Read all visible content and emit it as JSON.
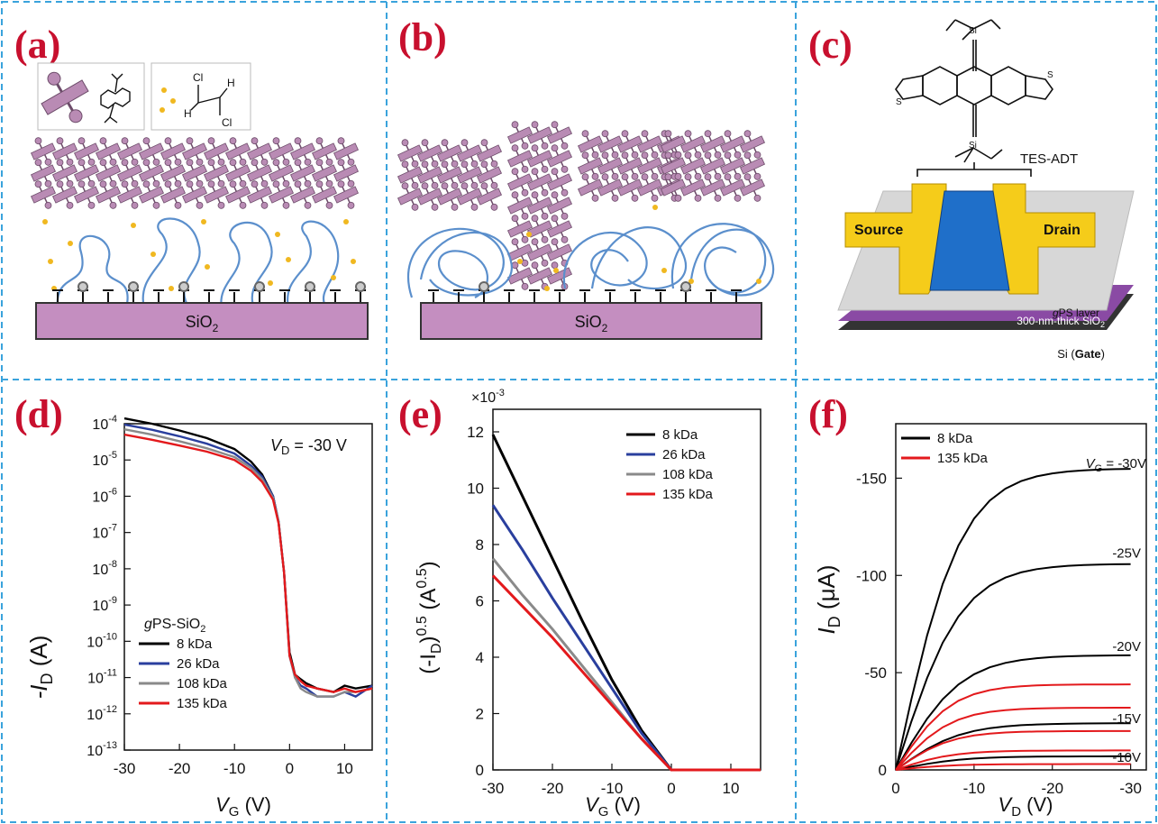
{
  "panel_labels": {
    "a": "(a)",
    "b": "(b)",
    "c": "(c)",
    "d": "(d)",
    "e": "(e)",
    "f": "(f)"
  },
  "diagram_a": {
    "substrate": "SiO",
    "subscript": "2"
  },
  "diagram_b": {
    "substrate": "SiO",
    "subscript": "2"
  },
  "diagram_c": {
    "molecule": "TES-ADT",
    "source": "Source",
    "drain": "Drain",
    "gps_italic": "g",
    "gps_rest": "PS layer",
    "sio2": "300-nm-thick SiO",
    "sio2_sub": "2",
    "gate_prefix": "Si (",
    "gate_bold": "Gate",
    "gate_suffix": ")",
    "atoms": {
      "si": "Si",
      "s": "S",
      "cl": "Cl",
      "h": "H"
    }
  },
  "colors": {
    "black": "#000000",
    "blue": "#2a3f9e",
    "gray": "#8a8a8a",
    "red": "#e3191c",
    "divider": "#3aa3dc",
    "pink": "#b98bb4",
    "gold": "#f0b820",
    "bluechain": "#5b8fcc",
    "yellow": "#f5cc1a",
    "channel": "#1f6fc9"
  },
  "chart_data": [
    {
      "type": "line",
      "panel": "d",
      "ylabel_main": "-I",
      "ylabel_sub": "D",
      "ylabel_unit": " (A)",
      "xlabel_main": "V",
      "xlabel_sub": "G",
      "xlabel_unit": " (V)",
      "yscale": "log",
      "xlim": [
        -30,
        15
      ],
      "ylim": [
        1e-13,
        0.0001
      ],
      "xticks": [
        "-30",
        "-20",
        "-10",
        "0",
        "10"
      ],
      "yticks": [
        {
          "base": "10",
          "exp": "-4"
        },
        {
          "base": "10",
          "exp": "-5"
        },
        {
          "base": "10",
          "exp": "-6"
        },
        {
          "base": "10",
          "exp": "-7"
        },
        {
          "base": "10",
          "exp": "-8"
        },
        {
          "base": "10",
          "exp": "-9"
        },
        {
          "base": "10",
          "exp": "-10"
        },
        {
          "base": "10",
          "exp": "-11"
        },
        {
          "base": "10",
          "exp": "-12"
        },
        {
          "base": "10",
          "exp": "-13"
        }
      ],
      "annotation": {
        "main": "V",
        "sub": "D",
        "rest": " = -30 V"
      },
      "legend_title": {
        "italic": "g",
        "rest": "PS-SiO",
        "sub": "2"
      },
      "legend_placement": "bottom-left",
      "series": [
        {
          "name": "8 kDa",
          "color": "#000000",
          "x": [
            -30,
            -25,
            -20,
            -15,
            -10,
            -7,
            -5,
            -3,
            -2,
            -1,
            0,
            1,
            2,
            3,
            5,
            8,
            10,
            12,
            15
          ],
          "y": [
            0.00014,
            0.0001,
            6.5e-05,
            4e-05,
            2e-05,
            9e-06,
            4e-06,
            1e-06,
            2e-07,
            8e-09,
            5e-11,
            1.2e-11,
            9e-12,
            7e-12,
            5e-12,
            4e-12,
            6e-12,
            5e-12,
            6e-12
          ]
        },
        {
          "name": "26 kDa",
          "color": "#2a3f9e",
          "x": [
            -30,
            -25,
            -20,
            -15,
            -10,
            -7,
            -5,
            -3,
            -2,
            -1,
            0,
            1,
            2,
            3,
            5,
            8,
            10,
            12,
            15
          ],
          "y": [
            9.5e-05,
            6.8e-05,
            4.5e-05,
            2.8e-05,
            1.5e-05,
            7e-06,
            3.5e-06,
            1e-06,
            2e-07,
            8e-09,
            4e-11,
            1e-11,
            6e-12,
            5e-12,
            3e-12,
            3e-12,
            4e-12,
            3e-12,
            6e-12
          ]
        },
        {
          "name": "108 kDa",
          "color": "#8a8a8a",
          "x": [
            -30,
            -25,
            -20,
            -15,
            -10,
            -7,
            -5,
            -3,
            -2,
            -1,
            0,
            1,
            2,
            3,
            5,
            8,
            10,
            12,
            15
          ],
          "y": [
            7e-05,
            5e-05,
            3.3e-05,
            2.1e-05,
            1.2e-05,
            6e-06,
            3e-06,
            9e-07,
            2e-07,
            8e-09,
            4e-11,
            1e-11,
            5e-12,
            4e-12,
            3e-12,
            3e-12,
            4e-12,
            4e-12,
            5e-12
          ]
        },
        {
          "name": "135 kDa",
          "color": "#e3191c",
          "x": [
            -30,
            -25,
            -20,
            -15,
            -10,
            -7,
            -5,
            -3,
            -2,
            -1,
            0,
            1,
            2,
            3,
            5,
            8,
            10,
            12,
            15
          ],
          "y": [
            5e-05,
            3.6e-05,
            2.5e-05,
            1.7e-05,
            1e-05,
            5e-06,
            2.5e-06,
            8e-07,
            1.8e-07,
            8e-09,
            4e-11,
            1.2e-11,
            8e-12,
            6e-12,
            5e-12,
            4e-12,
            5e-12,
            4e-12,
            5e-12
          ]
        }
      ]
    },
    {
      "type": "line",
      "panel": "e",
      "ylabel_open": "(-I",
      "ylabel_sub": "D",
      "ylabel_close": ")",
      "ylabel_sup": "0.5",
      "ylabel_unit_open": " (A",
      "ylabel_unit_sup": "0.5",
      "ylabel_unit_close": ")",
      "xlabel_main": "V",
      "xlabel_sub": "G",
      "xlabel_unit": " (V)",
      "y_multiplier": {
        "base": "×10",
        "exp": "-3"
      },
      "xlim": [
        -30,
        15
      ],
      "ylim": [
        0,
        12.8
      ],
      "xticks": [
        "-30",
        "-20",
        "-10",
        "0",
        "10"
      ],
      "yticks": [
        "0",
        "2",
        "4",
        "6",
        "8",
        "10",
        "12"
      ],
      "legend_placement": "top-right",
      "series": [
        {
          "name": "8 kDa",
          "color": "#000000",
          "x": [
            -30,
            -25,
            -20,
            -15,
            -10,
            -5,
            0,
            5,
            10,
            15
          ],
          "y": [
            11.9,
            9.7,
            7.5,
            5.3,
            3.2,
            1.4,
            0,
            0,
            0,
            0
          ]
        },
        {
          "name": "26 kDa",
          "color": "#2a3f9e",
          "x": [
            -30,
            -25,
            -20,
            -15,
            -10,
            -5,
            0,
            5,
            10,
            15
          ],
          "y": [
            9.4,
            7.8,
            6.1,
            4.5,
            2.9,
            1.3,
            0,
            0,
            0,
            0
          ]
        },
        {
          "name": "108 kDa",
          "color": "#8a8a8a",
          "x": [
            -30,
            -25,
            -20,
            -15,
            -10,
            -5,
            0,
            5,
            10,
            15
          ],
          "y": [
            7.5,
            6.2,
            5.0,
            3.7,
            2.4,
            1.1,
            0,
            0,
            0,
            0
          ]
        },
        {
          "name": "135 kDa",
          "color": "#e3191c",
          "x": [
            -30,
            -25,
            -20,
            -15,
            -10,
            -5,
            0,
            5,
            10,
            15
          ],
          "y": [
            6.9,
            5.8,
            4.7,
            3.5,
            2.3,
            1.1,
            0,
            0,
            0,
            0
          ]
        }
      ]
    },
    {
      "type": "line",
      "panel": "f",
      "ylabel_main": "I",
      "ylabel_sub": "D",
      "ylabel_unit": " (μA)",
      "xlabel_main": "V",
      "xlabel_sub": "D",
      "xlabel_unit": " (V)",
      "xlim": [
        0,
        -32
      ],
      "ylim": [
        0,
        -178
      ],
      "xticks": [
        "0",
        "-10",
        "-20",
        "-30"
      ],
      "yticks": [
        "0",
        "-50",
        "-100",
        "-150"
      ],
      "legend_placement": "top-left",
      "legend": [
        {
          "name": "8 kDa",
          "color": "#000000"
        },
        {
          "name": "135 kDa",
          "color": "#e3191c"
        }
      ],
      "vg_prefix": "V",
      "vg_sub": "G",
      "vg_labels": [
        {
          "text": " = -30V",
          "y": -158
        },
        {
          "text": "-25V",
          "y": -112
        },
        {
          "text": "-20V",
          "y": -64
        },
        {
          "text": "-15V",
          "y": -27
        },
        {
          "text": "-10V",
          "y": -7
        }
      ],
      "x": [
        0,
        -2,
        -4,
        -6,
        -8,
        -10,
        -12,
        -14,
        -16,
        -18,
        -20,
        -22,
        -24,
        -26,
        -28,
        -30
      ],
      "series": [
        {
          "name": "8 kDa VG=-30V",
          "color": "#000000",
          "sat": -155
        },
        {
          "name": "8 kDa VG=-25V",
          "color": "#000000",
          "sat": -106
        },
        {
          "name": "8 kDa VG=-20V",
          "color": "#000000",
          "sat": -59
        },
        {
          "name": "8 kDa VG=-15V",
          "color": "#000000",
          "sat": -24
        },
        {
          "name": "8 kDa VG=-10V",
          "color": "#000000",
          "sat": -7
        },
        {
          "name": "135 kDa VG=-30V",
          "color": "#e3191c",
          "sat": -44
        },
        {
          "name": "135 kDa VG=-25V",
          "color": "#e3191c",
          "sat": -32
        },
        {
          "name": "135 kDa VG=-20V",
          "color": "#e3191c",
          "sat": -20
        },
        {
          "name": "135 kDa VG=-15V",
          "color": "#e3191c",
          "sat": -10
        },
        {
          "name": "135 kDa VG=-10V",
          "color": "#e3191c",
          "sat": -3
        }
      ]
    }
  ]
}
